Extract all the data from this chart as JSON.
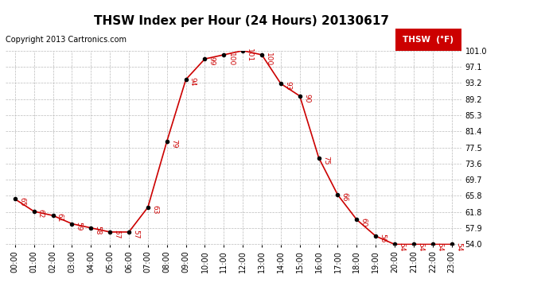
{
  "title": "THSW Index per Hour (24 Hours) 20130617",
  "copyright": "Copyright 2013 Cartronics.com",
  "legend_label": "THSW  (°F)",
  "hours": [
    0,
    1,
    2,
    3,
    4,
    5,
    6,
    7,
    8,
    9,
    10,
    11,
    12,
    13,
    14,
    15,
    16,
    17,
    18,
    19,
    20,
    21,
    22,
    23
  ],
  "values": [
    65,
    62,
    61,
    59,
    58,
    57,
    57,
    63,
    79,
    94,
    99,
    100,
    101,
    100,
    93,
    90,
    75,
    66,
    60,
    56,
    54,
    54,
    54,
    54
  ],
  "x_labels": [
    "00:00",
    "01:00",
    "02:00",
    "03:00",
    "04:00",
    "05:00",
    "06:00",
    "07:00",
    "08:00",
    "09:00",
    "10:00",
    "11:00",
    "12:00",
    "13:00",
    "14:00",
    "15:00",
    "16:00",
    "17:00",
    "18:00",
    "19:00",
    "20:00",
    "21:00",
    "22:00",
    "23:00"
  ],
  "y_ticks": [
    54.0,
    57.9,
    61.8,
    65.8,
    69.7,
    73.6,
    77.5,
    81.4,
    85.3,
    89.2,
    93.2,
    97.1,
    101.0
  ],
  "y_tick_labels": [
    "54.0",
    "57.9",
    "61.8",
    "65.8",
    "69.7",
    "73.6",
    "77.5",
    "81.4",
    "85.3",
    "89.2",
    "93.2",
    "97.1",
    "101.0"
  ],
  "ylim": [
    54.0,
    101.0
  ],
  "xlim": [
    -0.5,
    23.5
  ],
  "line_color": "#cc0000",
  "marker_color": "#000000",
  "label_color": "#cc0000",
  "bg_color": "#ffffff",
  "grid_color": "#bbbbbb",
  "title_fontsize": 11,
  "copyright_fontsize": 7,
  "label_fontsize": 6.5,
  "tick_fontsize": 7,
  "legend_bg": "#cc0000",
  "legend_text_color": "#ffffff",
  "legend_fontsize": 7.5
}
